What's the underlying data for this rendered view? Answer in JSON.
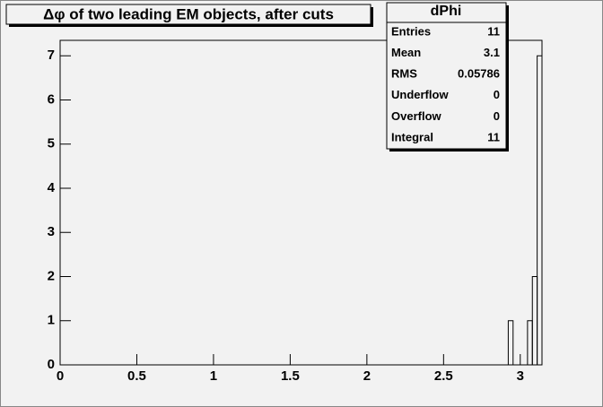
{
  "chart_data": {
    "type": "histogram",
    "title": "Δφ of two leading EM objects, after cuts",
    "bins": [
      0,
      2.9217,
      2.9531,
      3.0473,
      3.0788,
      3.1102,
      3.1416
    ],
    "counts": [
      0,
      1,
      0,
      1,
      2,
      7
    ],
    "color": "#000000",
    "xlim": [
      0,
      3.1416
    ],
    "xticks": [
      0,
      0.5,
      1,
      1.5,
      2,
      2.5,
      3
    ],
    "ylim": [
      0,
      7.35
    ],
    "yticks": [
      0,
      1,
      2,
      3,
      4,
      5,
      6,
      7
    ],
    "stats": {
      "name": "dPhi",
      "rows": [
        {
          "label": "Entries",
          "value": 11
        },
        {
          "label": "Mean",
          "value": 3.1
        },
        {
          "label": "RMS",
          "value": 0.05786
        },
        {
          "label": "Underflow",
          "value": 0
        },
        {
          "label": "Overflow",
          "value": 0
        },
        {
          "label": "Integral",
          "value": 11
        }
      ]
    }
  }
}
